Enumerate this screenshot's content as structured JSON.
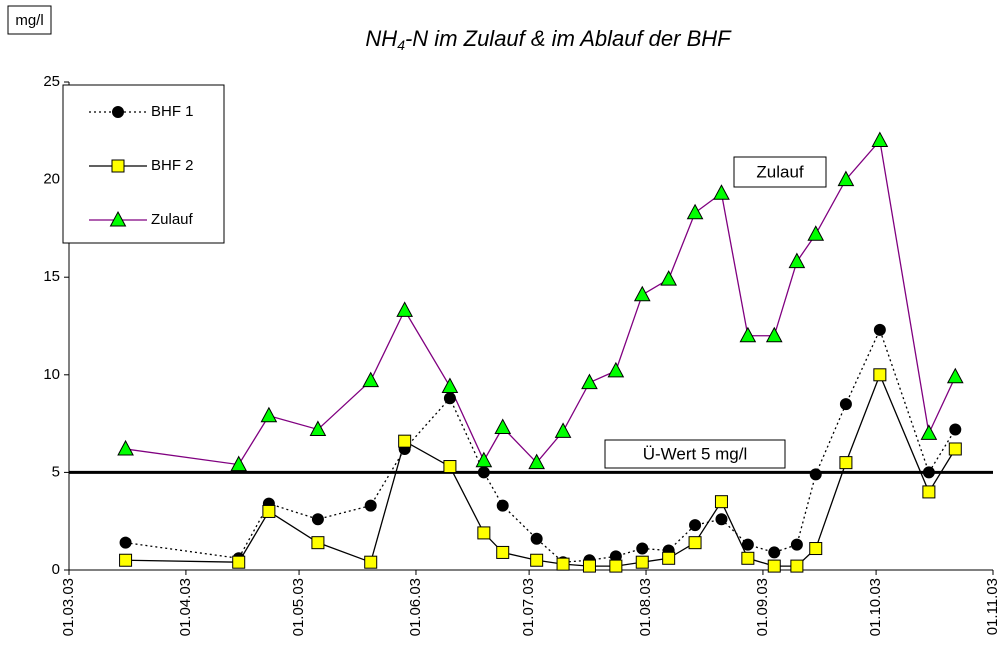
{
  "chart_data": {
    "type": "line",
    "title": [
      "NH",
      "4",
      "-N im Zulauf & im Ablauf der BHF"
    ],
    "y_unit": "mg/l",
    "x": [
      "16.03.03",
      "15.04.03",
      "23.04.03",
      "06.05.03",
      "20.05.03",
      "29.05.03",
      "10.06.03",
      "19.06.03",
      "24.06.03",
      "03.07.03",
      "10.07.03",
      "17.07.03",
      "24.07.03",
      "31.07.03",
      "07.08.03",
      "14.08.03",
      "21.08.03",
      "28.08.03",
      "04.09.03",
      "10.09.03",
      "15.09.03",
      "23.09.03",
      "02.10.03",
      "15.10.03",
      "22.10.03"
    ],
    "series": [
      {
        "name": "BHF 1",
        "color": "#000000",
        "marker_color": "#000000",
        "marker": "circle",
        "dash": true,
        "values": [
          1.4,
          0.6,
          3.4,
          2.6,
          3.3,
          6.2,
          8.8,
          5.0,
          3.3,
          1.6,
          0.4,
          0.5,
          0.7,
          1.1,
          1.0,
          2.3,
          2.6,
          1.3,
          0.9,
          1.3,
          4.9,
          8.5,
          12.3,
          5.0,
          7.2
        ]
      },
      {
        "name": "BHF 2",
        "color": "#000000",
        "marker_color": "#ffff00",
        "marker": "square",
        "dash": false,
        "values": [
          0.5,
          0.4,
          3.0,
          1.4,
          0.4,
          6.6,
          5.3,
          1.9,
          0.9,
          0.5,
          0.3,
          0.2,
          0.2,
          0.4,
          0.6,
          1.4,
          3.5,
          0.6,
          0.2,
          0.2,
          1.1,
          5.5,
          10.0,
          4.0,
          6.2
        ]
      },
      {
        "name": "Zulauf",
        "color": "#800080",
        "marker_color": "#00ff00",
        "marker": "triangle",
        "dash": false,
        "values": [
          6.2,
          5.4,
          7.9,
          7.2,
          9.7,
          13.3,
          9.4,
          5.6,
          7.3,
          5.5,
          7.1,
          9.6,
          10.2,
          14.1,
          14.9,
          18.3,
          19.3,
          12.0,
          12.0,
          15.8,
          17.2,
          20.0,
          22.0,
          7.0,
          9.9
        ]
      }
    ],
    "threshold": {
      "value": 5,
      "label": "Ü-Wert 5 mg/l"
    },
    "annotation": "Zulauf",
    "xlim": [
      "01.03.03",
      "01.11.03"
    ],
    "xticks": [
      "01.03.03",
      "01.04.03",
      "01.05.03",
      "01.06.03",
      "01.07.03",
      "01.08.03",
      "01.09.03",
      "01.10.03",
      "01.11.03"
    ],
    "ylim": [
      0,
      25
    ],
    "yticks": [
      0,
      5,
      10,
      15,
      20,
      25
    ],
    "legend": "top-left"
  }
}
